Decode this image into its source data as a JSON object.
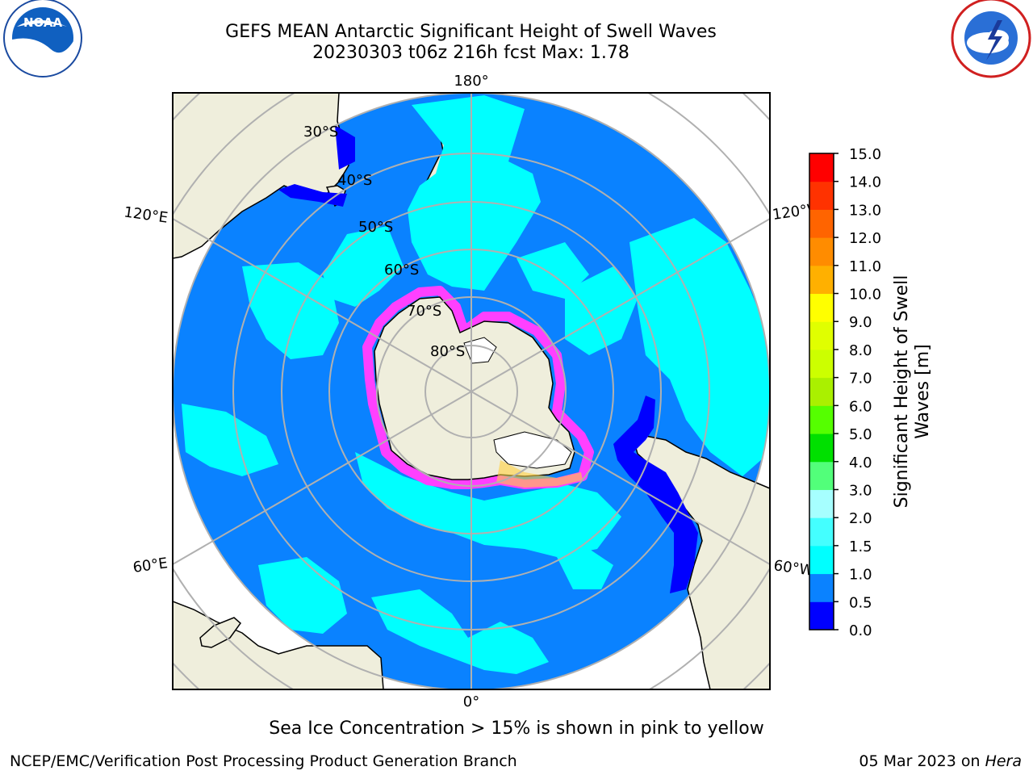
{
  "title": {
    "line1": "GEFS MEAN Antarctic Significant Height of Swell Waves",
    "line2": "20230303 t06z 216h fcst   Max: 1.78"
  },
  "map": {
    "projection": "south-polar-stereographic",
    "longitude_labels": {
      "top": "180°",
      "bottom": "0°",
      "upper_left": "120°E",
      "upper_right": "120°W",
      "lower_left": "60°E",
      "lower_right": "60°W"
    },
    "latitude_labels": [
      "30°S",
      "40°S",
      "50°S",
      "60°S",
      "70°S",
      "80°S"
    ],
    "colors": {
      "land": "#efeedc",
      "ocean_low": "#0a82ff",
      "ocean_mid": "#00ffff",
      "ocean_deep": "#0000ff",
      "grid": "#b0b0b0",
      "ice_pink": "#ff40ff",
      "ice_white": "#ffffff"
    }
  },
  "colorbar": {
    "label": "Significant Height of Swell Waves [m]",
    "label_line1": "Significant Height of Swell",
    "label_line2": "Waves [m]",
    "ticks": [
      "0.0",
      "0.5",
      "1.0",
      "1.5",
      "2.0",
      "3.0",
      "4.0",
      "5.0",
      "6.0",
      "7.0",
      "8.0",
      "9.0",
      "10.0",
      "11.0",
      "12.0",
      "13.0",
      "14.0",
      "15.0"
    ],
    "colors": [
      "#0000ff",
      "#0a82ff",
      "#00ffff",
      "#44ffff",
      "#a6ffff",
      "#52ff7a",
      "#00e000",
      "#55ff00",
      "#aaf000",
      "#ccff00",
      "#e0ff00",
      "#ffff00",
      "#ffb000",
      "#ff8c00",
      "#ff6400",
      "#ff3200",
      "#ff0000"
    ]
  },
  "logos": {
    "noaa": "NOAA",
    "noaa_ring": "NATIONAL OCEANIC AND ATMOSPHERIC ADMINISTRATION",
    "noaa_ring_bottom": "U.S. DEPARTMENT OF COMMERCE",
    "nws_ring": "NATIONAL WEATHER SERVICE"
  },
  "note": "Sea Ice Concentration > 15% is shown in pink to yellow",
  "footer": {
    "left": "NCEP/EMC/Verification Post Processing Product Generation Branch",
    "right_date": "05 Mar 2023 on ",
    "right_host": "Hera"
  }
}
